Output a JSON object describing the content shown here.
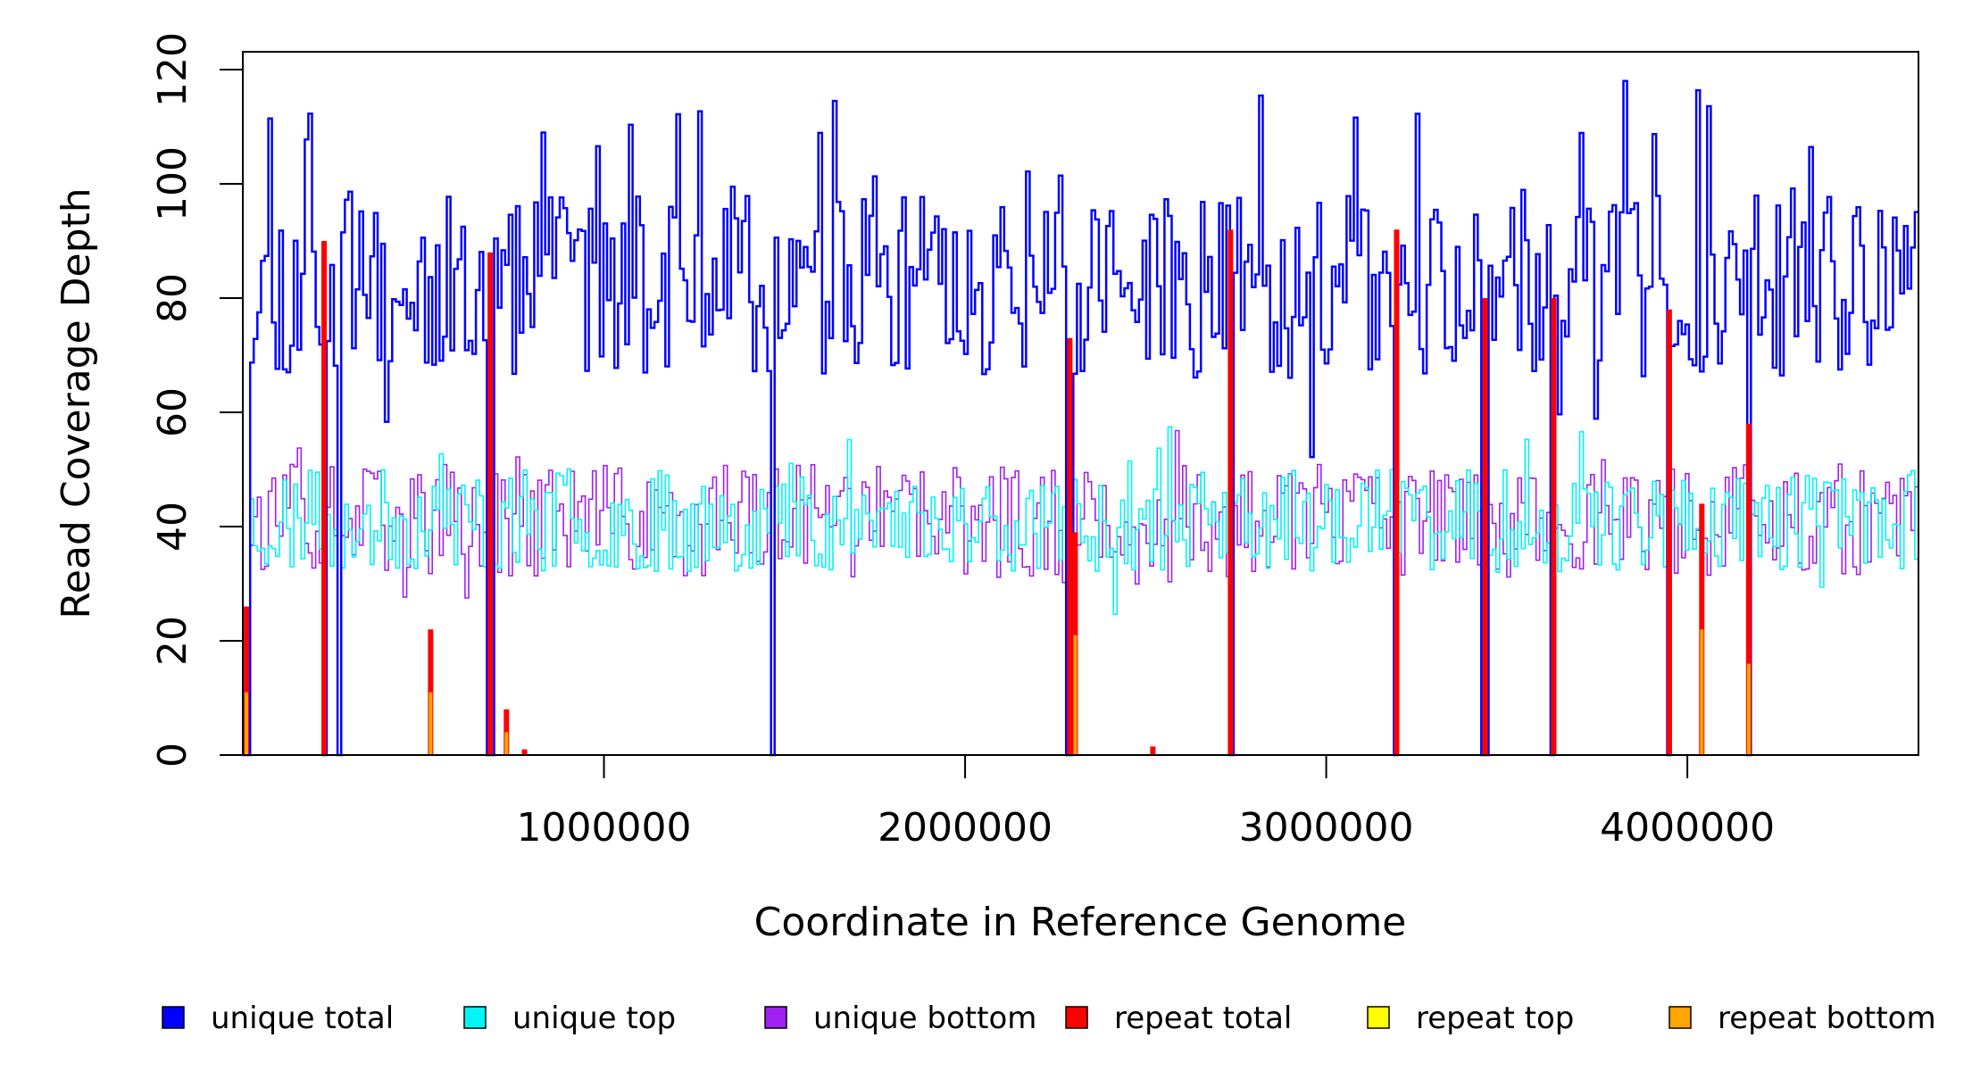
{
  "chart_data": {
    "type": "line",
    "title": "",
    "xlabel": "Coordinate in Reference Genome",
    "ylabel": "Read Coverage Depth",
    "xlim": [
      0,
      4640000
    ],
    "ylim": [
      0,
      120
    ],
    "x_ticks": [
      1000000,
      2000000,
      3000000,
      4000000
    ],
    "x_tick_labels": [
      "1000000",
      "2000000",
      "3000000",
      "4000000"
    ],
    "y_ticks": [
      0,
      20,
      40,
      60,
      80,
      100,
      120
    ],
    "y_tick_labels": [
      "0",
      "20",
      "40",
      "60",
      "80",
      "100",
      "120"
    ],
    "grid": false,
    "legend_position": "bottom",
    "series": [
      {
        "name": "unique total",
        "color": "#0000ff",
        "baseline": 82,
        "amplitude": 16,
        "seed": 11,
        "bins": 460
      },
      {
        "name": "unique top",
        "color": "#00f5f5",
        "baseline": 41,
        "amplitude": 9,
        "seed": 23,
        "bins": 460
      },
      {
        "name": "unique bottom",
        "color": "#a020f0",
        "baseline": 41,
        "amplitude": 10,
        "seed": 37,
        "bins": 460
      },
      {
        "name": "repeat total",
        "color": "#ff0000",
        "baseline": 0,
        "amplitude": 0,
        "seed": 0,
        "bins": 0
      },
      {
        "name": "repeat top",
        "color": "#ffff00",
        "baseline": 0,
        "amplitude": 0,
        "seed": 0,
        "bins": 0
      },
      {
        "name": "repeat bottom",
        "color": "#ffa500",
        "baseline": 0,
        "amplitude": 0,
        "seed": 0,
        "bins": 0
      }
    ],
    "unique_dropouts": [
      10000,
      225000,
      265000,
      685000,
      1470000,
      2290000,
      2735000,
      3195000,
      3440000,
      3630000,
      3950000,
      4170000
    ],
    "repeat_peaks": [
      {
        "x": 10000,
        "total": 26,
        "bottom": 11
      },
      {
        "x": 225000,
        "total": 90,
        "bottom": 0
      },
      {
        "x": 520000,
        "total": 22,
        "bottom": 11
      },
      {
        "x": 685000,
        "total": 88,
        "bottom": 0
      },
      {
        "x": 730000,
        "total": 8,
        "bottom": 4
      },
      {
        "x": 780000,
        "total": 1,
        "bottom": 0
      },
      {
        "x": 2290000,
        "total": 73,
        "bottom": 0
      },
      {
        "x": 2305000,
        "total": 39,
        "bottom": 21
      },
      {
        "x": 2520000,
        "total": 1.5,
        "bottom": 0
      },
      {
        "x": 2735000,
        "total": 92,
        "bottom": 0
      },
      {
        "x": 3195000,
        "total": 92,
        "bottom": 0
      },
      {
        "x": 3440000,
        "total": 80,
        "bottom": 0
      },
      {
        "x": 3630000,
        "total": 80,
        "bottom": 0
      },
      {
        "x": 3950000,
        "total": 78,
        "bottom": 0
      },
      {
        "x": 4040000,
        "total": 44,
        "bottom": 22
      },
      {
        "x": 4170000,
        "total": 58,
        "bottom": 16
      }
    ]
  }
}
